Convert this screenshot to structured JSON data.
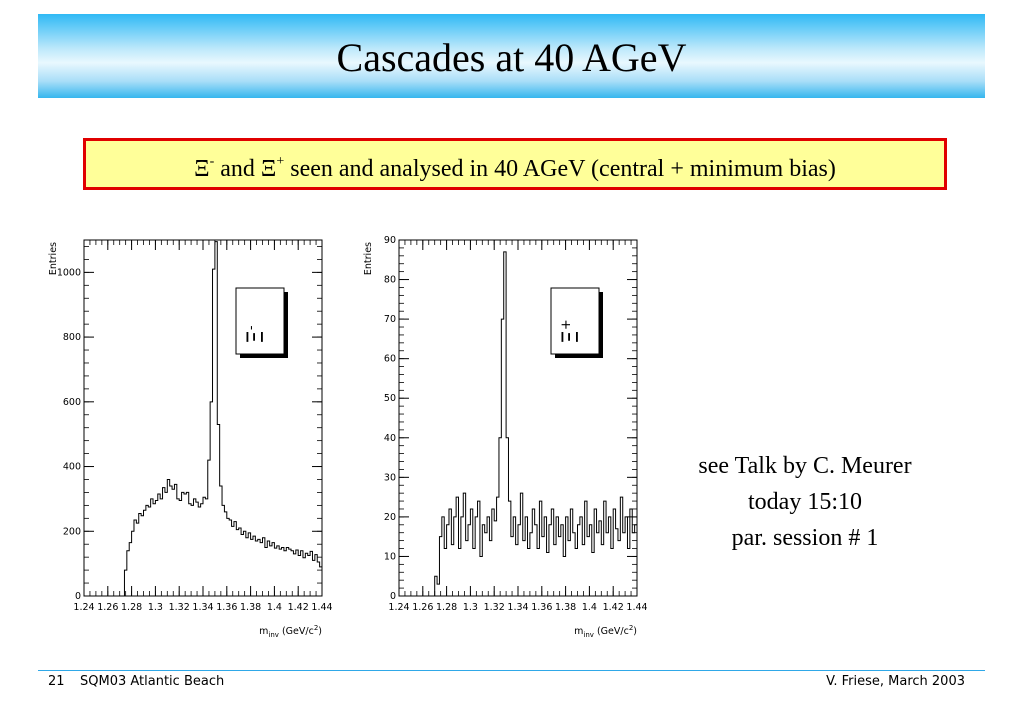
{
  "slide": {
    "title": "Cascades at 40 AGeV",
    "highlight": {
      "xi_minus_symbol": "Ξ",
      "xi_minus_sup": "-",
      "and_text": " and ",
      "xi_plus_symbol": "Ξ",
      "xi_plus_sup": "+",
      "rest_text": " seen and analysed in 40 AGeV (central + minimum bias)"
    },
    "note_lines": [
      "see Talk by C. Meurer",
      "today 15:10",
      "par. session # 1"
    ],
    "footer": {
      "slide_number": "21",
      "left": "SQM03 Atlantic Beach",
      "right": "V. Friese, March 2003"
    }
  },
  "chart_data": [
    {
      "type": "histogram",
      "ylabel": "Entries",
      "xlabel_main": "m",
      "xlabel_sub": "inv",
      "xlabel_unit_prefix": " (GeV/c",
      "xlabel_unit_sup": "2",
      "xlabel_unit_suffix": ")",
      "xlim": [
        1.24,
        1.44
      ],
      "ylim": [
        0,
        1100
      ],
      "x_tick_labels": [
        "1.24",
        "1.26",
        "1.28",
        "1.3",
        "1.32",
        "1.34",
        "1.36",
        "1.38",
        "1.4",
        "1.42",
        "1.44"
      ],
      "x_tick_values": [
        1.24,
        1.26,
        1.28,
        1.3,
        1.32,
        1.34,
        1.36,
        1.38,
        1.4,
        1.42,
        1.44
      ],
      "y_tick_values": [
        0,
        200,
        400,
        600,
        800,
        1000
      ],
      "y_tick_labels": [
        "0",
        "200",
        "400",
        "600",
        "800",
        "1000"
      ],
      "legend_symbol": "Ξ",
      "legend_sup": "-",
      "bin_width": 0.002,
      "bin_start": 1.24,
      "values": [
        0,
        0,
        0,
        0,
        0,
        0,
        0,
        0,
        0,
        0,
        0,
        0,
        0,
        0,
        0,
        0,
        0,
        80,
        140,
        165,
        200,
        235,
        225,
        255,
        248,
        265,
        280,
        275,
        300,
        285,
        295,
        315,
        300,
        335,
        320,
        360,
        340,
        330,
        345,
        300,
        295,
        320,
        315,
        320,
        285,
        280,
        300,
        290,
        275,
        285,
        305,
        300,
        420,
        600,
        1010,
        1095,
        530,
        340,
        280,
        260,
        240,
        235,
        215,
        230,
        205,
        210,
        190,
        200,
        180,
        195,
        175,
        185,
        170,
        175,
        165,
        180,
        150,
        170,
        155,
        165,
        148,
        155,
        145,
        150,
        140,
        150,
        145,
        140,
        130,
        142,
        125,
        140,
        118,
        132,
        125,
        138,
        110,
        128,
        105,
        90
      ]
    },
    {
      "type": "histogram",
      "ylabel": "Entries",
      "xlabel_main": "m",
      "xlabel_sub": "inv",
      "xlabel_unit_prefix": " (GeV/c",
      "xlabel_unit_sup": "2",
      "xlabel_unit_suffix": ")",
      "xlim": [
        1.24,
        1.44
      ],
      "ylim": [
        0,
        90
      ],
      "x_tick_labels": [
        "1.24",
        "1.26",
        "1.28",
        "1.3",
        "1.32",
        "1.34",
        "1.36",
        "1.38",
        "1.4",
        "1.42",
        "1.44"
      ],
      "x_tick_values": [
        1.24,
        1.26,
        1.28,
        1.3,
        1.32,
        1.34,
        1.36,
        1.38,
        1.4,
        1.42,
        1.44
      ],
      "y_tick_values": [
        0,
        10,
        20,
        30,
        40,
        50,
        60,
        70,
        80,
        90
      ],
      "y_tick_labels": [
        "0",
        "10",
        "20",
        "30",
        "40",
        "50",
        "60",
        "70",
        "80",
        "90"
      ],
      "legend_symbol": "Ξ",
      "legend_sup": "+",
      "bin_width": 0.002,
      "bin_start": 1.24,
      "values": [
        0,
        0,
        0,
        0,
        0,
        0,
        0,
        0,
        0,
        0,
        0,
        0,
        0,
        0,
        0,
        5,
        3,
        15,
        20,
        12,
        18,
        22,
        13,
        20,
        25,
        12,
        20,
        26,
        14,
        18,
        22,
        12,
        20,
        24,
        10,
        18,
        16,
        20,
        14,
        22,
        19,
        25,
        40,
        70,
        87,
        40,
        24,
        15,
        20,
        13,
        18,
        26,
        14,
        20,
        12,
        16,
        22,
        18,
        12,
        24,
        15,
        20,
        11,
        18,
        22,
        13,
        20,
        15,
        18,
        10,
        20,
        14,
        22,
        16,
        12,
        18,
        20,
        13,
        24,
        15,
        18,
        11,
        22,
        16,
        19,
        13,
        24,
        16,
        20,
        12,
        22,
        17,
        14,
        25,
        16,
        20,
        12,
        22,
        16,
        18
      ]
    }
  ]
}
